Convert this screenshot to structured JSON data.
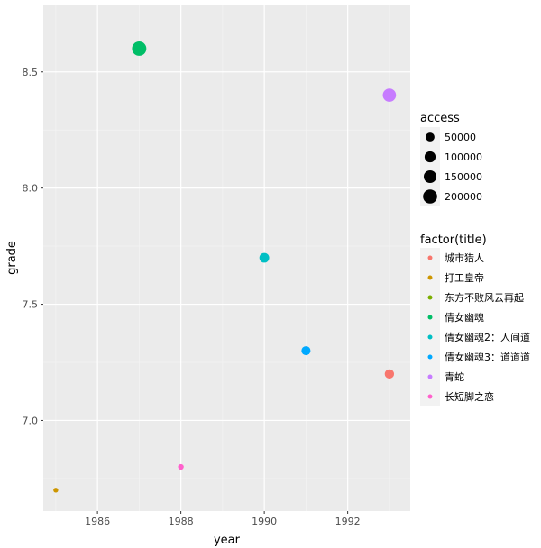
{
  "chart_data": {
    "type": "scatter",
    "xlabel": "year",
    "ylabel": "grade",
    "xlim": [
      1984.7,
      1993.5
    ],
    "ylim": [
      6.61,
      8.79
    ],
    "xticks": [
      1986,
      1988,
      1990,
      1992
    ],
    "yticks": [
      7.0,
      7.5,
      8.0,
      8.5
    ],
    "xtick_labels": [
      "1986",
      "1988",
      "1990",
      "1992"
    ],
    "ytick_labels": [
      "7.0",
      "7.5",
      "8.0",
      "8.5"
    ],
    "grid": true,
    "legend_position": "right",
    "size_legend": {
      "title": "access",
      "entries": [
        {
          "label": "50000",
          "value": 50000
        },
        {
          "label": "100000",
          "value": 100000
        },
        {
          "label": "150000",
          "value": 150000
        },
        {
          "label": "200000",
          "value": 200000
        }
      ]
    },
    "color_legend": {
      "title": "factor(title)",
      "entries": [
        {
          "label": "城市猎人",
          "color": "#F8766D"
        },
        {
          "label": "打工皇帝",
          "color": "#CD9600"
        },
        {
          "label": "东方不败风云再起",
          "color": "#7CAE00"
        },
        {
          "label": "倩女幽魂",
          "color": "#00BE67"
        },
        {
          "label": "倩女幽魂2：人间道",
          "color": "#00BFC4"
        },
        {
          "label": "倩女幽魂3：道道道",
          "color": "#00A9FF"
        },
        {
          "label": "青蛇",
          "color": "#C77CFF"
        },
        {
          "label": "长短脚之恋",
          "color": "#FF61CC"
        }
      ]
    },
    "points": [
      {
        "title": "城市猎人",
        "x": 1993,
        "y": 7.2,
        "access": 60000
      },
      {
        "title": "打工皇帝",
        "x": 1985,
        "y": 6.7,
        "access": 3000
      },
      {
        "title": "倩女幽魂",
        "x": 1987,
        "y": 8.6,
        "access": 210000
      },
      {
        "title": "倩女幽魂2：人间道",
        "x": 1990,
        "y": 7.7,
        "access": 70000
      },
      {
        "title": "倩女幽魂3：道道道",
        "x": 1991,
        "y": 7.3,
        "access": 55000
      },
      {
        "title": "青蛇",
        "x": 1993,
        "y": 8.4,
        "access": 170000
      },
      {
        "title": "长短脚之恋",
        "x": 1988,
        "y": 6.8,
        "access": 8000
      }
    ]
  }
}
